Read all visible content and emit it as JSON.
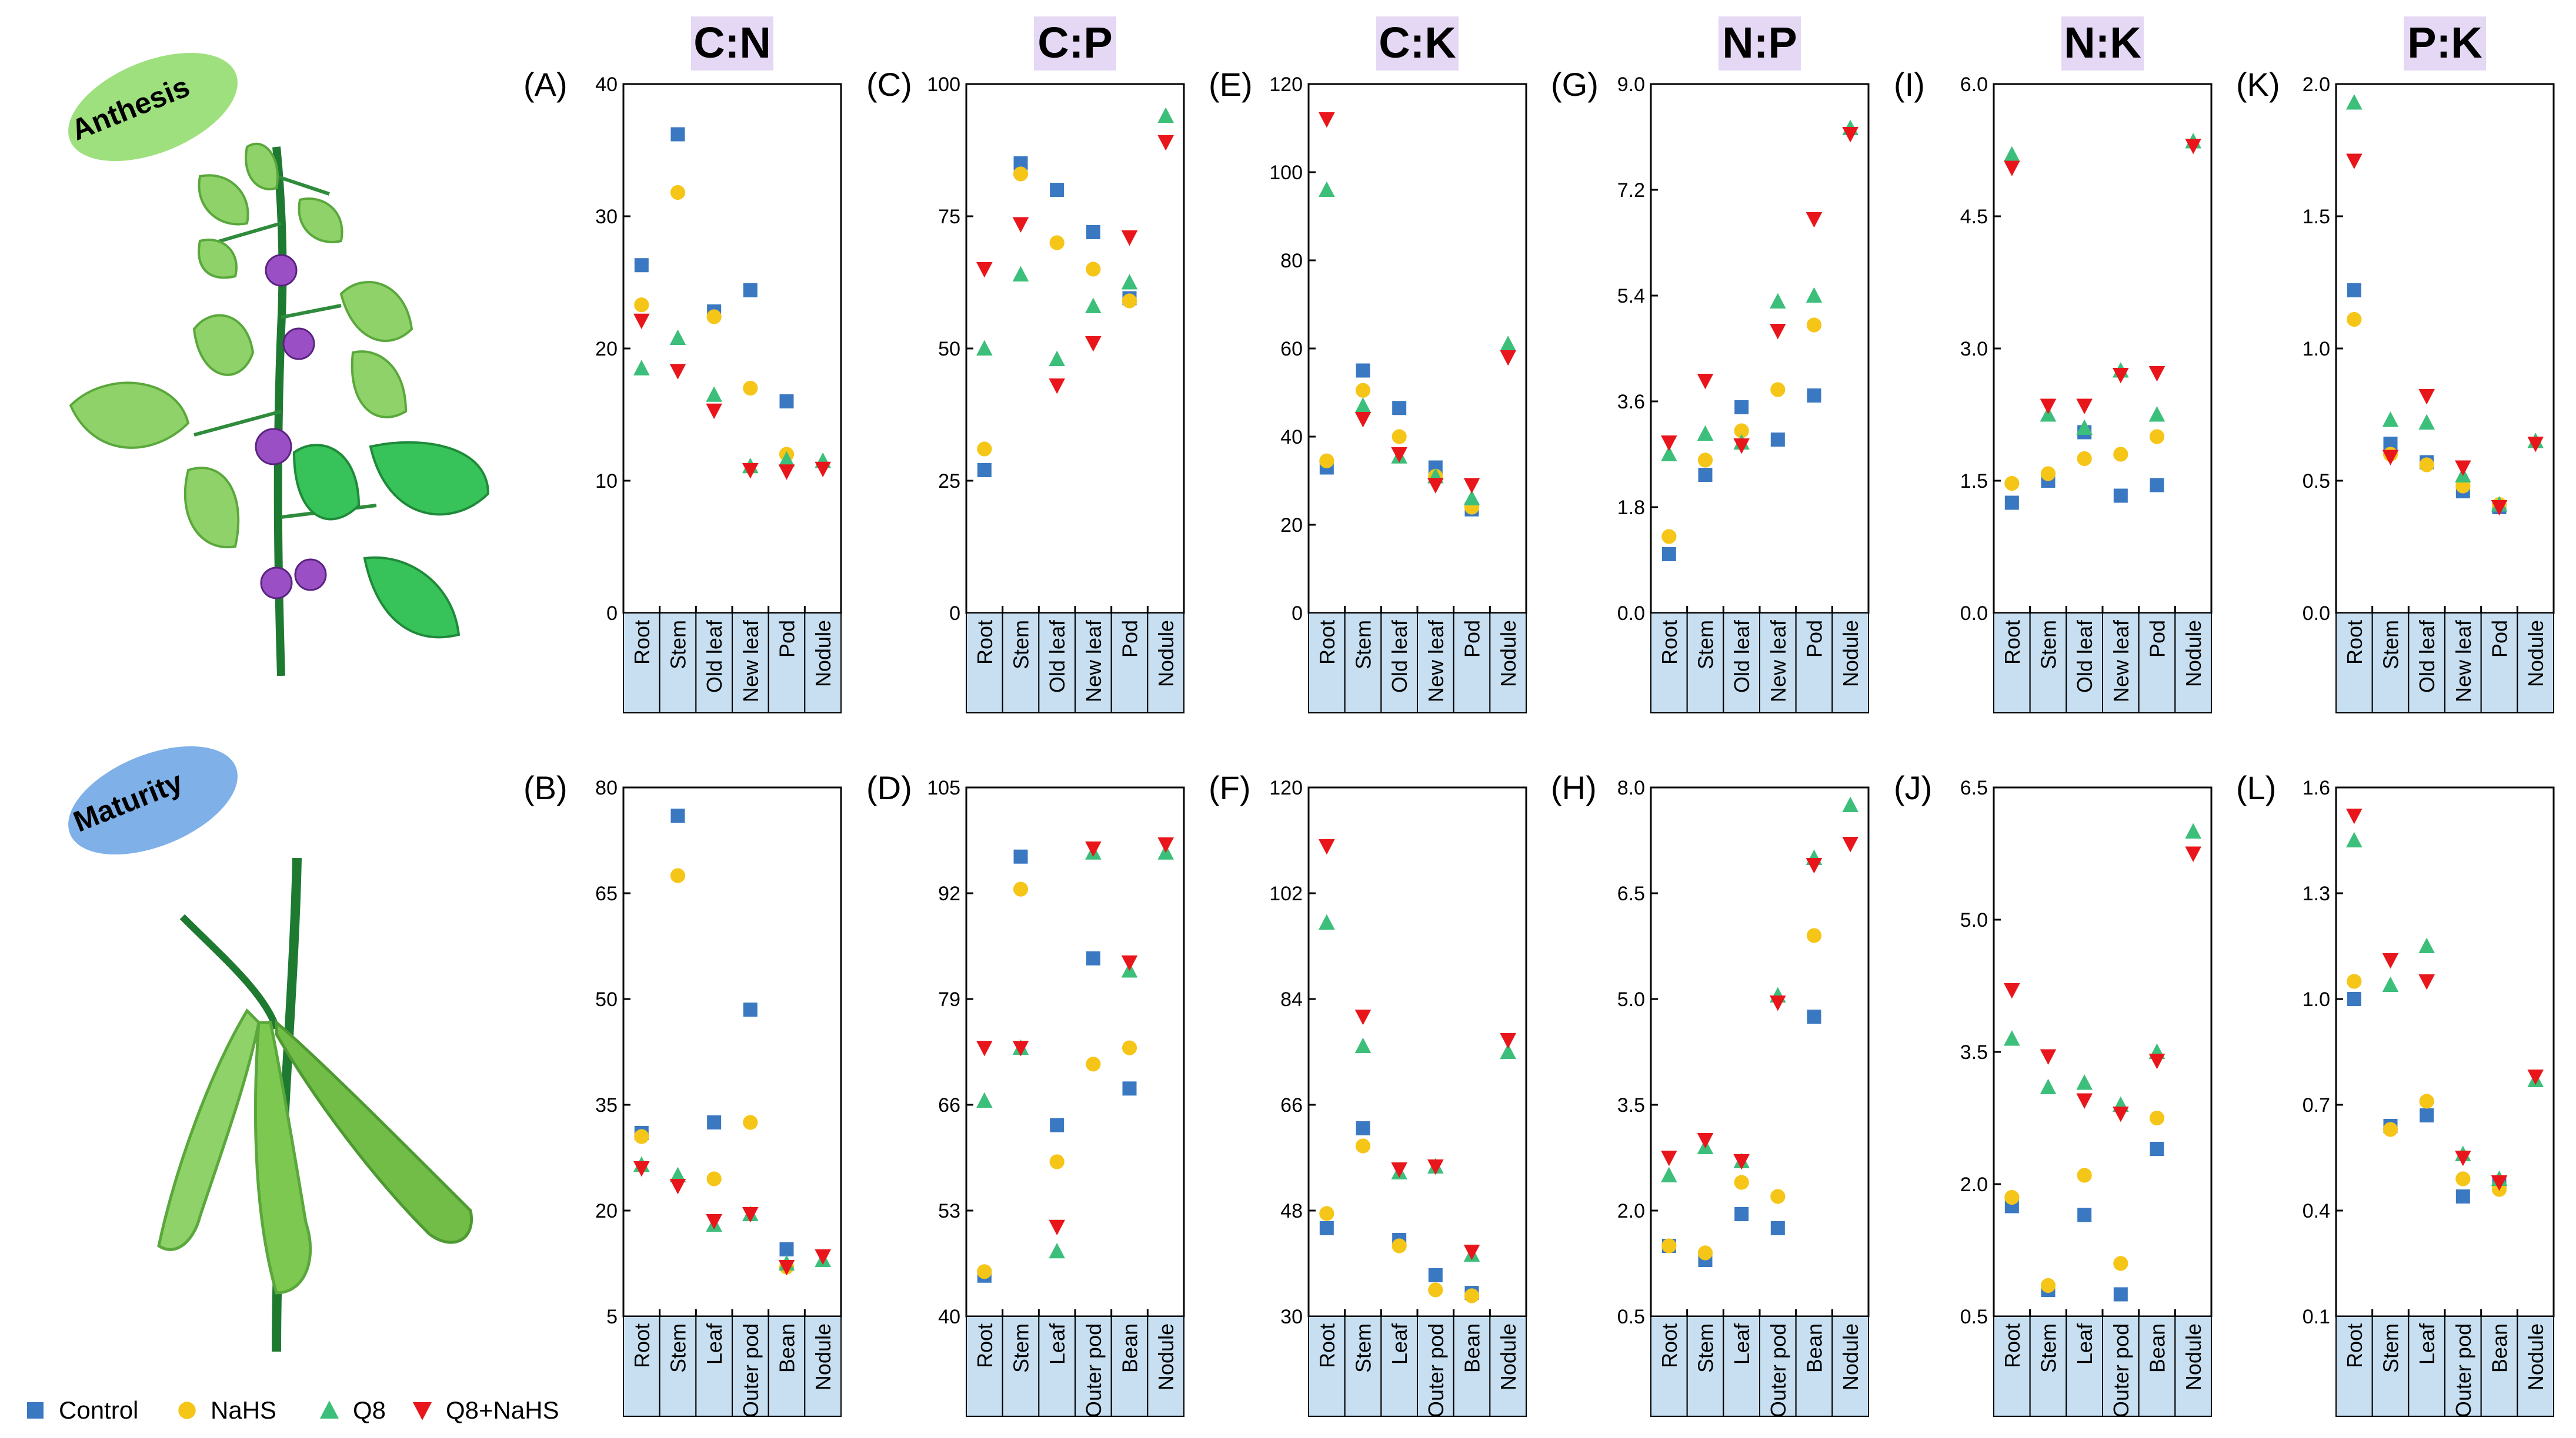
{
  "stages": {
    "anthesis": "Anthesis",
    "maturity": "Maturity"
  },
  "legend": [
    {
      "name": "Control",
      "shape": "square",
      "color": "#3a78c2"
    },
    {
      "name": "NaHS",
      "shape": "circle",
      "color": "#f5c518"
    },
    {
      "name": "Q8",
      "shape": "triangle-up",
      "color": "#3cbf7a"
    },
    {
      "name": "Q8+NaHS",
      "shape": "triangle-down",
      "color": "#e8161b"
    }
  ],
  "colors": {
    "header_bg": "#e4d8f5",
    "xcat_bg": "#c7dff0",
    "leaf": "#8fd26a",
    "leaf_vein": "#3a9ad9",
    "pod": "#7dc850",
    "flower": "#9a4fc4"
  },
  "chart_data": [
    {
      "panel": "(A)",
      "ratio": "C:N",
      "row": 0,
      "col": 0,
      "type": "scatter",
      "categories": [
        "Root",
        "Stem",
        "Old leaf",
        "New leaf",
        "Pod",
        "Nodule"
      ],
      "ylim": [
        0,
        40
      ],
      "yticks": [
        "0",
        "10",
        "20",
        "30",
        "40"
      ],
      "series": [
        {
          "name": "Control",
          "values": [
            26.3,
            36.2,
            22.8,
            24.4,
            16,
            null
          ]
        },
        {
          "name": "NaHS",
          "values": [
            23.3,
            31.8,
            22.4,
            17,
            12,
            null
          ]
        },
        {
          "name": "Q8",
          "values": [
            18.5,
            20.8,
            16.5,
            11.1,
            11.6,
            11.5
          ]
        },
        {
          "name": "Q8+NaHS",
          "values": [
            22.1,
            18.3,
            15.3,
            10.8,
            10.7,
            10.9
          ]
        }
      ]
    },
    {
      "panel": "(C)",
      "ratio": "C:P",
      "row": 0,
      "col": 1,
      "type": "scatter",
      "categories": [
        "Root",
        "Stem",
        "Old leaf",
        "New leaf",
        "Pod",
        "Nodule"
      ],
      "ylim": [
        0,
        100
      ],
      "yticks": [
        "0",
        "25",
        "50",
        "75",
        "100"
      ],
      "series": [
        {
          "name": "Control",
          "values": [
            27,
            85,
            80,
            72,
            59.5,
            null
          ]
        },
        {
          "name": "NaHS",
          "values": [
            31,
            83,
            70,
            65,
            59,
            null
          ]
        },
        {
          "name": "Q8",
          "values": [
            50,
            64,
            48,
            58,
            62.5,
            94
          ]
        },
        {
          "name": "Q8+NaHS",
          "values": [
            65,
            73.5,
            43,
            51,
            71,
            89
          ]
        }
      ]
    },
    {
      "panel": "(E)",
      "ratio": "C:K",
      "row": 0,
      "col": 2,
      "type": "scatter",
      "categories": [
        "Root",
        "Stem",
        "Old leaf",
        "New leaf",
        "Pod",
        "Nodule"
      ],
      "ylim": [
        0,
        120
      ],
      "yticks": [
        "0",
        "20",
        "40",
        "60",
        "80",
        "100",
        "120"
      ],
      "series": [
        {
          "name": "Control",
          "values": [
            33,
            55,
            46.5,
            33,
            23.5,
            null
          ]
        },
        {
          "name": "NaHS",
          "values": [
            34.5,
            50.5,
            40,
            31,
            24,
            null
          ]
        },
        {
          "name": "Q8",
          "values": [
            96,
            47,
            35.5,
            31,
            26,
            61
          ]
        },
        {
          "name": "Q8+NaHS",
          "values": [
            112,
            44,
            36,
            29,
            29,
            58
          ]
        }
      ]
    },
    {
      "panel": "(G)",
      "ratio": "N:P",
      "row": 0,
      "col": 3,
      "type": "scatter",
      "categories": [
        "Root",
        "Stem",
        "Old leaf",
        "New leaf",
        "Pod",
        "Nodule"
      ],
      "ylim": [
        0,
        9
      ],
      "yticks": [
        "0.0",
        "1.8",
        "3.6",
        "5.4",
        "7.2",
        "9.0"
      ],
      "series": [
        {
          "name": "Control",
          "values": [
            1,
            2.35,
            3.5,
            2.95,
            3.7,
            null
          ]
        },
        {
          "name": "NaHS",
          "values": [
            1.3,
            2.6,
            3.1,
            3.8,
            4.9,
            null
          ]
        },
        {
          "name": "Q8",
          "values": [
            2.7,
            3.05,
            2.9,
            5.3,
            5.4,
            8.25
          ]
        },
        {
          "name": "Q8+NaHS",
          "values": [
            2.9,
            3.95,
            2.85,
            4.8,
            6.7,
            8.15
          ]
        }
      ]
    },
    {
      "panel": "(I)",
      "ratio": "N:K",
      "row": 0,
      "col": 4,
      "type": "scatter",
      "categories": [
        "Root",
        "Stem",
        "Old leaf",
        "New leaf",
        "Pod",
        "Nodule"
      ],
      "ylim": [
        0,
        6
      ],
      "yticks": [
        "0.0",
        "1.5",
        "3.0",
        "4.5",
        "6.0"
      ],
      "series": [
        {
          "name": "Control",
          "values": [
            1.25,
            1.5,
            2.05,
            1.33,
            1.45,
            null
          ]
        },
        {
          "name": "NaHS",
          "values": [
            1.47,
            1.58,
            1.75,
            1.8,
            2.0,
            null
          ]
        },
        {
          "name": "Q8",
          "values": [
            5.2,
            2.25,
            2.1,
            2.75,
            2.25,
            5.35
          ]
        },
        {
          "name": "Q8+NaHS",
          "values": [
            5.05,
            2.35,
            2.35,
            2.7,
            2.72,
            5.3
          ]
        }
      ]
    },
    {
      "panel": "(K)",
      "ratio": "P:K",
      "row": 0,
      "col": 5,
      "type": "scatter",
      "categories": [
        "Root",
        "Stem",
        "Old leaf",
        "New leaf",
        "Pod",
        "Nodule"
      ],
      "ylim": [
        0,
        2
      ],
      "yticks": [
        "0.0",
        "0.5",
        "1.0",
        "1.5",
        "2.0"
      ],
      "series": [
        {
          "name": "Control",
          "values": [
            1.22,
            0.64,
            0.57,
            0.46,
            0.4,
            null
          ]
        },
        {
          "name": "NaHS",
          "values": [
            1.11,
            0.6,
            0.56,
            0.48,
            0.41,
            null
          ]
        },
        {
          "name": "Q8",
          "values": [
            1.93,
            0.73,
            0.72,
            0.52,
            0.41,
            0.65
          ]
        },
        {
          "name": "Q8+NaHS",
          "values": [
            1.71,
            0.59,
            0.82,
            0.55,
            0.4,
            0.64
          ]
        }
      ]
    },
    {
      "panel": "(B)",
      "ratio": "C:N",
      "row": 1,
      "col": 0,
      "type": "scatter",
      "categories": [
        "Root",
        "Stem",
        "Leaf",
        "Outer pod",
        "Bean",
        "Nodule"
      ],
      "ylim": [
        5,
        80
      ],
      "yticks": [
        "5",
        "20",
        "35",
        "50",
        "65",
        "80"
      ],
      "series": [
        {
          "name": "Control",
          "values": [
            31,
            76,
            32.5,
            48.5,
            14.5,
            null
          ]
        },
        {
          "name": "NaHS",
          "values": [
            30.5,
            67.5,
            24.5,
            32.5,
            12,
            null
          ]
        },
        {
          "name": "Q8",
          "values": [
            26.5,
            25,
            18,
            19.5,
            12.5,
            13
          ]
        },
        {
          "name": "Q8+NaHS",
          "values": [
            26,
            23.5,
            18.5,
            19.5,
            12,
            13.5
          ]
        }
      ]
    },
    {
      "panel": "(D)",
      "ratio": "C:P",
      "row": 1,
      "col": 1,
      "type": "scatter",
      "categories": [
        "Root",
        "Stem",
        "Leaf",
        "Outer pod",
        "Bean",
        "Nodule"
      ],
      "ylim": [
        40,
        105
      ],
      "yticks": [
        "40",
        "53",
        "66",
        "79",
        "92",
        "105"
      ],
      "series": [
        {
          "name": "Control",
          "values": [
            45,
            96.5,
            63.5,
            84,
            68,
            null
          ]
        },
        {
          "name": "NaHS",
          "values": [
            45.5,
            92.5,
            59,
            71,
            73,
            null
          ]
        },
        {
          "name": "Q8",
          "values": [
            66.5,
            73,
            48,
            97,
            82.5,
            97
          ]
        },
        {
          "name": "Q8+NaHS",
          "values": [
            73,
            73,
            51,
            97.5,
            83.5,
            98
          ]
        }
      ]
    },
    {
      "panel": "(F)",
      "ratio": "C:K",
      "row": 1,
      "col": 2,
      "type": "scatter",
      "categories": [
        "Root",
        "Stem",
        "Leaf",
        "Outer pod",
        "Bean",
        "Nodule"
      ],
      "ylim": [
        30,
        120
      ],
      "yticks": [
        "30",
        "48",
        "66",
        "84",
        "102",
        "120"
      ],
      "series": [
        {
          "name": "Control",
          "values": [
            45,
            62,
            43,
            37,
            34,
            null
          ]
        },
        {
          "name": "NaHS",
          "values": [
            47.5,
            59,
            42,
            34.5,
            33.5,
            null
          ]
        },
        {
          "name": "Q8",
          "values": [
            97,
            76,
            54.5,
            55.5,
            40.5,
            75
          ]
        },
        {
          "name": "Q8+NaHS",
          "values": [
            110,
            81,
            55,
            55.5,
            41,
            77
          ]
        }
      ]
    },
    {
      "panel": "(H)",
      "ratio": "N:P",
      "row": 1,
      "col": 3,
      "type": "scatter",
      "categories": [
        "Root",
        "Stem",
        "Leaf",
        "Outer pod",
        "Bean",
        "Nodule"
      ],
      "ylim": [
        0.5,
        8
      ],
      "yticks": [
        "0.5",
        "2.0",
        "3.5",
        "5.0",
        "6.5",
        "8.0"
      ],
      "series": [
        {
          "name": "Control",
          "values": [
            1.5,
            1.3,
            1.95,
            1.75,
            4.75,
            null
          ]
        },
        {
          "name": "NaHS",
          "values": [
            1.5,
            1.4,
            2.4,
            2.2,
            5.9,
            null
          ]
        },
        {
          "name": "Q8",
          "values": [
            2.5,
            2.9,
            2.7,
            5.05,
            7.0,
            7.75
          ]
        },
        {
          "name": "Q8+NaHS",
          "values": [
            2.75,
            3.0,
            2.7,
            4.95,
            6.9,
            7.2
          ]
        }
      ]
    },
    {
      "panel": "(J)",
      "ratio": "N:K",
      "row": 1,
      "col": 4,
      "type": "scatter",
      "categories": [
        "Root",
        "Stem",
        "Leaf",
        "Outer pod",
        "Bean",
        "Nodule"
      ],
      "ylim": [
        0.5,
        6.5
      ],
      "yticks": [
        "0.5",
        "2.0",
        "3.5",
        "5.0",
        "6.5"
      ],
      "series": [
        {
          "name": "Control",
          "values": [
            1.75,
            0.8,
            1.65,
            0.75,
            2.4,
            null
          ]
        },
        {
          "name": "NaHS",
          "values": [
            1.85,
            0.85,
            2.1,
            1.1,
            2.75,
            null
          ]
        },
        {
          "name": "Q8",
          "values": [
            3.65,
            3.1,
            3.15,
            2.9,
            3.5,
            6.0
          ]
        },
        {
          "name": "Q8+NaHS",
          "values": [
            4.2,
            3.45,
            2.95,
            2.8,
            3.4,
            5.75
          ]
        }
      ]
    },
    {
      "panel": "(L)",
      "ratio": "P:K",
      "row": 1,
      "col": 5,
      "type": "scatter",
      "categories": [
        "Root",
        "Stem",
        "Leaf",
        "Outer pod",
        "Bean",
        "Nodule"
      ],
      "ylim": [
        0.1,
        1.6
      ],
      "yticks": [
        "0.1",
        "0.4",
        "0.7",
        "1.0",
        "1.3",
        "1.6"
      ],
      "series": [
        {
          "name": "Control",
          "values": [
            1.0,
            0.64,
            0.67,
            0.44,
            0.48,
            null
          ]
        },
        {
          "name": "NaHS",
          "values": [
            1.05,
            0.63,
            0.71,
            0.49,
            0.46,
            null
          ]
        },
        {
          "name": "Q8",
          "values": [
            1.45,
            1.04,
            1.15,
            0.56,
            0.49,
            0.77
          ]
        },
        {
          "name": "Q8+NaHS",
          "values": [
            1.52,
            1.11,
            1.05,
            0.55,
            0.48,
            0.78
          ]
        }
      ]
    }
  ]
}
